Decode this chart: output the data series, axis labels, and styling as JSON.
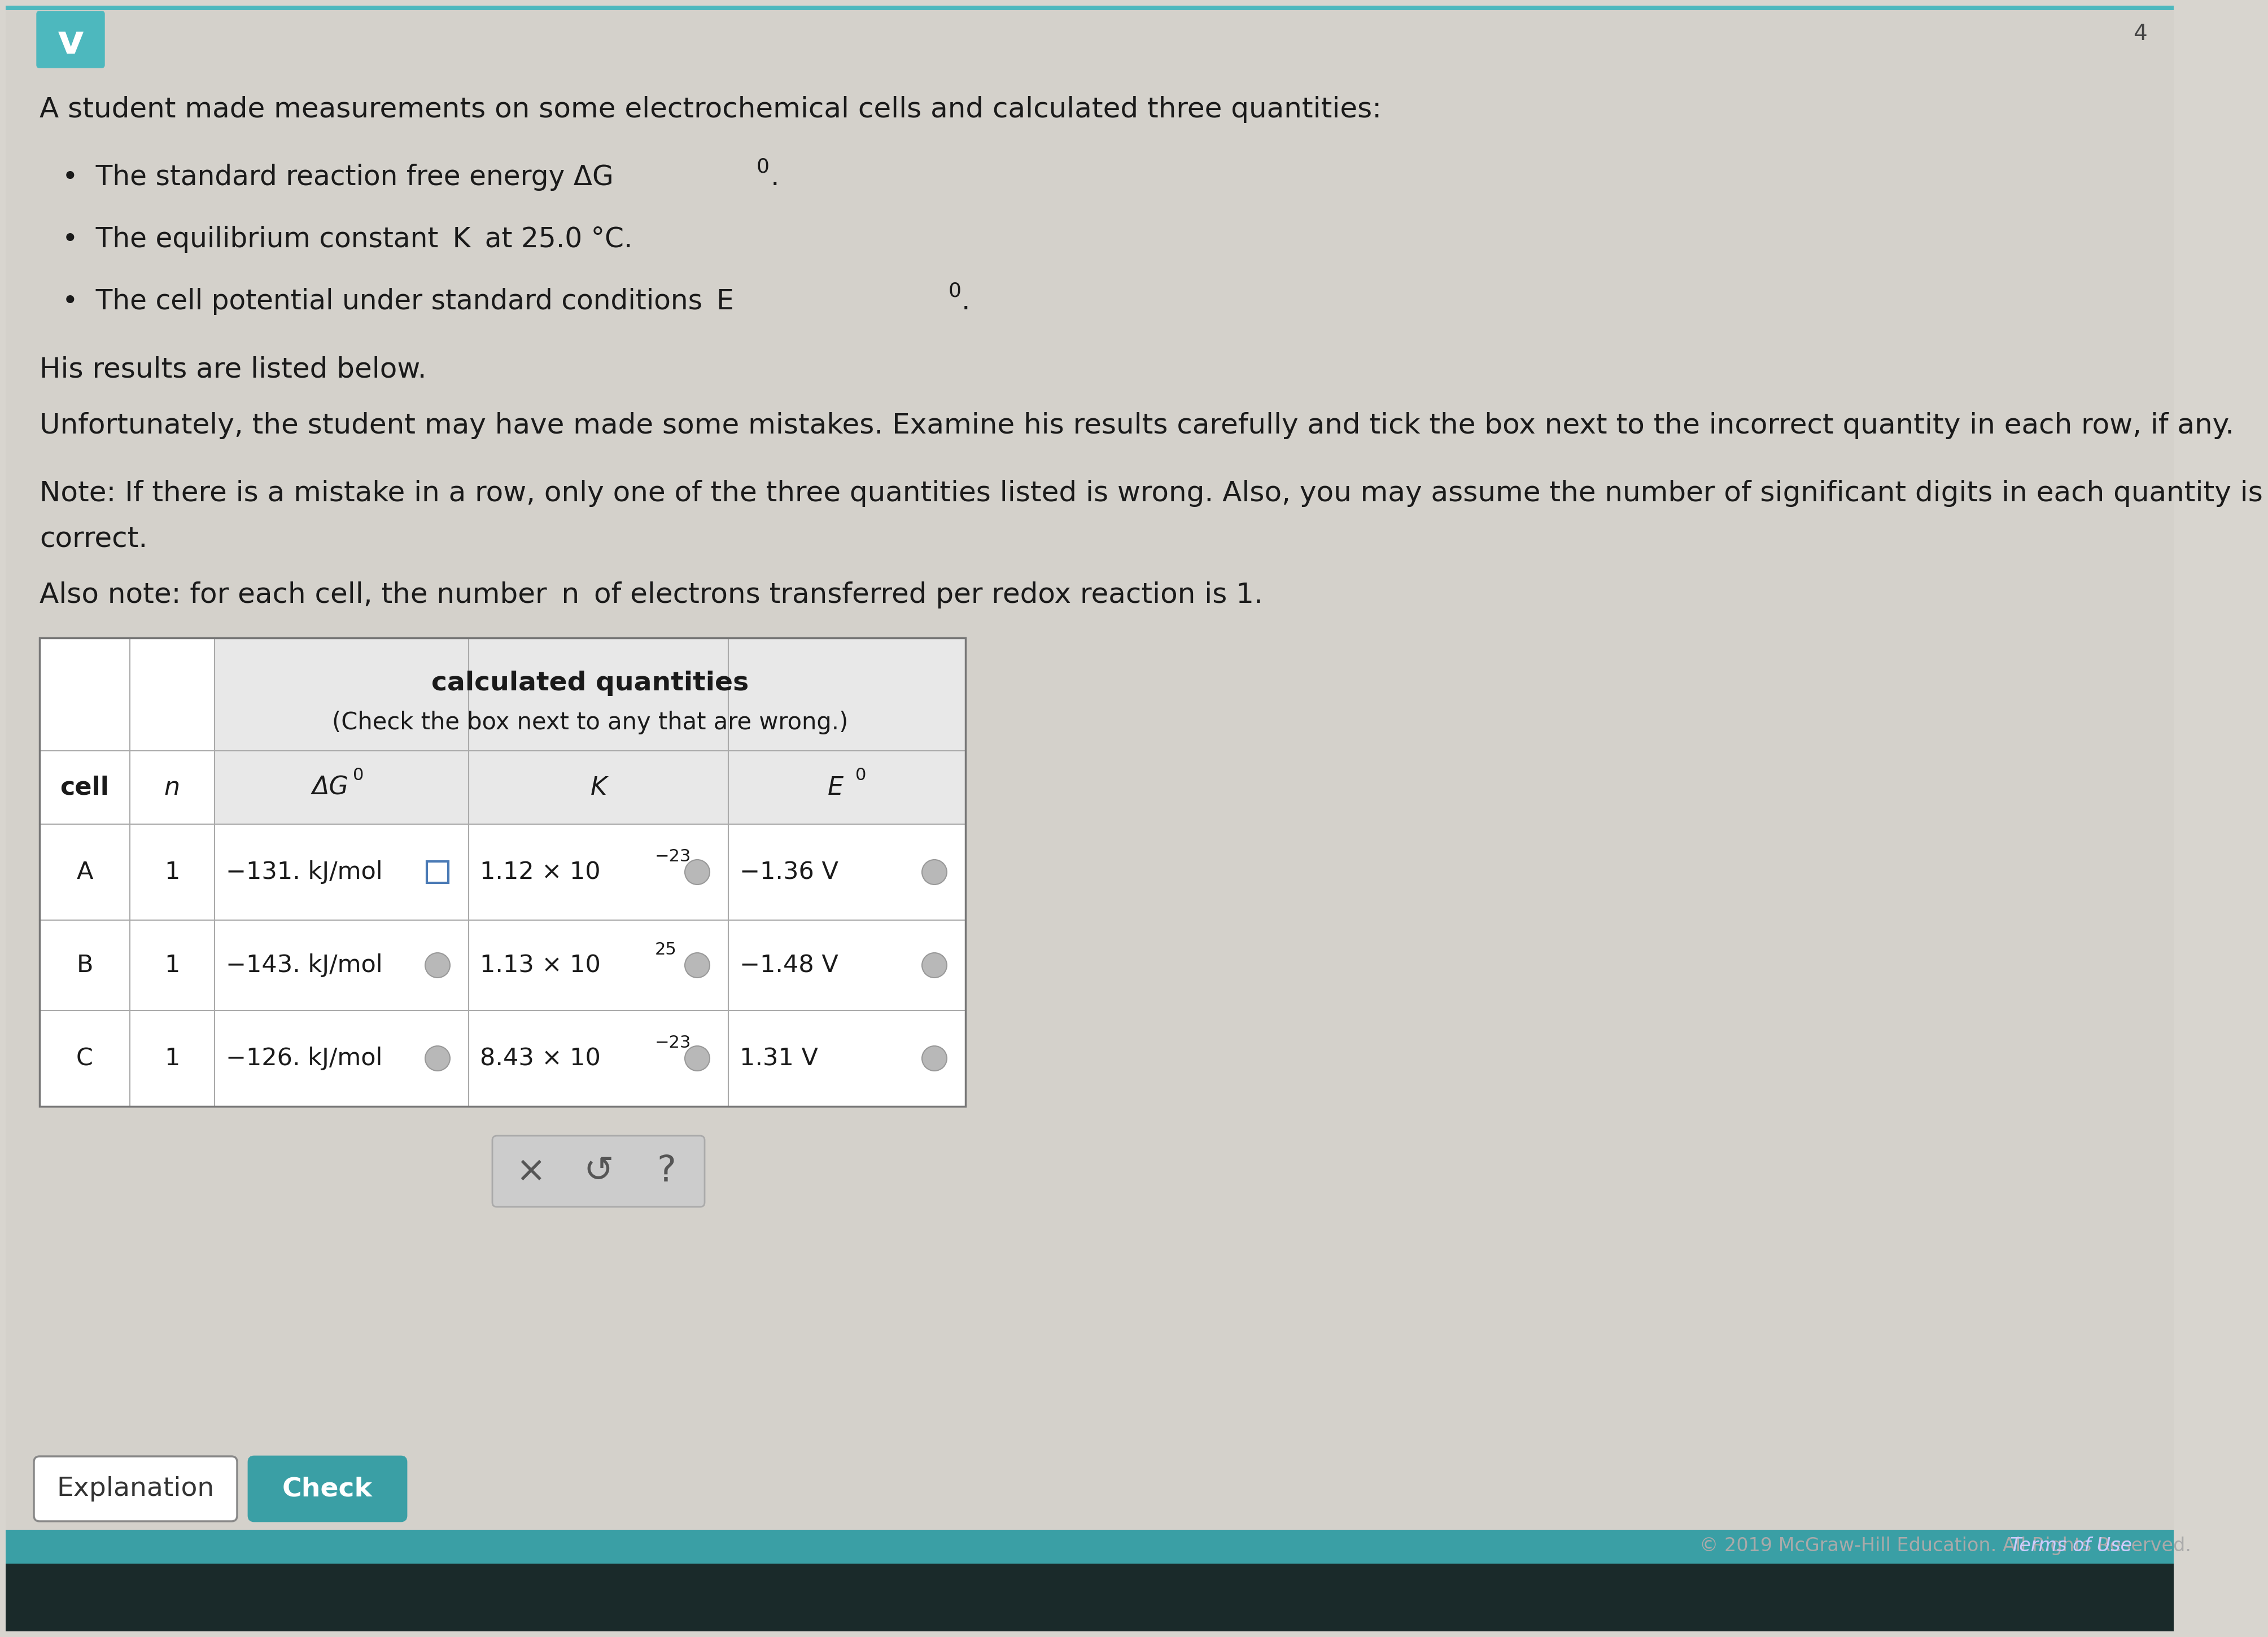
{
  "bg_color": "#d8d5cf",
  "page_bg": "#d8d5cf",
  "title_text": "A student made measurements on some electrochemical cells and calculated three quantities:",
  "results_text": "His results are listed below.",
  "unfortunately_text": "Unfortunately, the student may have made some mistakes. Examine his results carefully and tick the box next to the incorrect quantity in each row, if any.",
  "note1_bold": "Note:",
  "note1_rest": " If there is a mistake in a row, only one of the three quantities listed is wrong. Also, you may assume the number of significant digits in each quantity is correct.",
  "note2_bold": "Also note:",
  "note2_rest": " for each cell, the number ",
  "note2_n": "n",
  "note2_end": " of electrons transferred per redox reaction is 1.",
  "teal_color": "#4db8be",
  "dark_teal": "#2e8a90",
  "table_header1": "calculated quantities",
  "table_header2": "(Check the box next to any that are wrong.)",
  "rows": [
    {
      "cell": "A",
      "n": "1",
      "dg_display": "−131. kJ/mol",
      "dg_checked": true,
      "k_display": "1.12 × 10",
      "k_exp": "−23",
      "k_checked": false,
      "e_display": "−1.36 V",
      "e_checked": false
    },
    {
      "cell": "B",
      "n": "1",
      "dg_display": "−143. kJ/mol",
      "dg_checked": false,
      "k_display": "1.13 × 10",
      "k_exp": "25",
      "k_checked": false,
      "e_display": "−1.48 V",
      "e_checked": false
    },
    {
      "cell": "C",
      "n": "1",
      "dg_display": "−126. kJ/mol",
      "dg_checked": false,
      "k_display": "8.43 × 10",
      "k_exp": "−23",
      "k_checked": false,
      "e_display": "1.31 V",
      "e_checked": false
    }
  ],
  "footer_text": "© 2019 McGraw-Hill Education. All Rights Reserved.",
  "footer_link": "Terms of Use",
  "page_num": "4"
}
